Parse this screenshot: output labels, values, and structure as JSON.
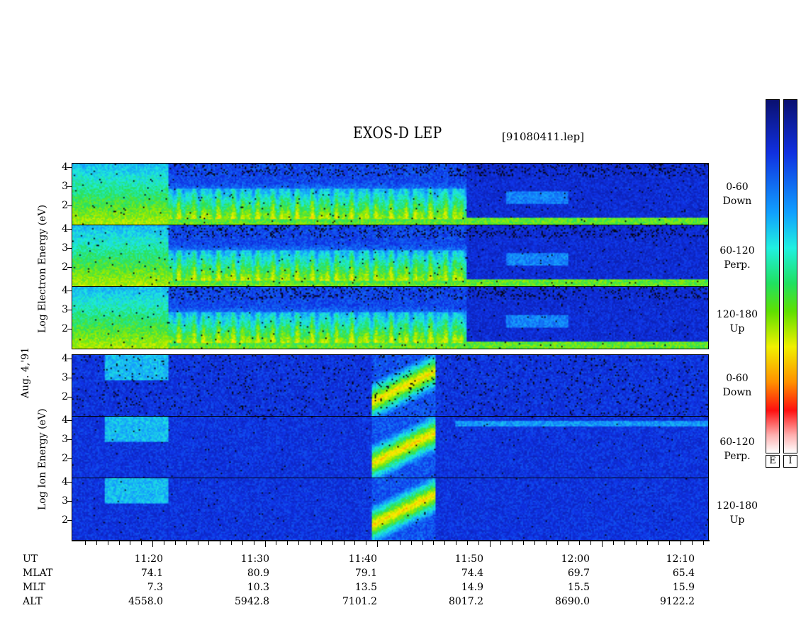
{
  "header": {
    "title": "EXOS-D LEP",
    "filename": "[91080411.lep]"
  },
  "left_labels": {
    "electron": "Log   Electron   Energy (eV)",
    "date": "Aug. 4,'91",
    "ion": "Log   Ion   Energy (eV)"
  },
  "panels": [
    {
      "id": "electron-0-60",
      "species": "electron",
      "pitch_line1": "0-60",
      "pitch_line2": "Down"
    },
    {
      "id": "electron-60-120",
      "species": "electron",
      "pitch_line1": "60-120",
      "pitch_line2": "Perp."
    },
    {
      "id": "electron-120-180",
      "species": "electron",
      "pitch_line1": "120-180",
      "pitch_line2": "Up"
    },
    {
      "id": "ion-0-60",
      "species": "ion",
      "pitch_line1": "0-60",
      "pitch_line2": "Down"
    },
    {
      "id": "ion-60-120",
      "species": "ion",
      "pitch_line1": "60-120",
      "pitch_line2": "Perp."
    },
    {
      "id": "ion-120-180",
      "species": "ion",
      "pitch_line1": "120-180",
      "pitch_line2": "Up"
    }
  ],
  "y_ticks": [
    "4",
    "3",
    "2"
  ],
  "x_rows": {
    "labels": [
      "UT",
      "MLAT",
      "MLT",
      "ALT"
    ],
    "ut": [
      "11:20",
      "11:30",
      "11:40",
      "11:50",
      "12:00",
      "12:10"
    ],
    "mlat": [
      "74.1",
      "80.9",
      "79.1",
      "74.4",
      "69.7",
      "65.4"
    ],
    "mlt": [
      "7.3",
      "10.3",
      "13.5",
      "14.9",
      "15.5",
      "15.9"
    ],
    "alt": [
      "4558.0",
      "5942.8",
      "7101.2",
      "8017.2",
      "8690.0",
      "9122.2"
    ]
  },
  "colorbar": {
    "labels": [
      "E",
      "I"
    ]
  },
  "chart_data": {
    "type": "heatmap",
    "title": "EXOS-D LEP",
    "ylabel": "Log Electron Energy (eV) / Log Ion Energy (eV)",
    "ylim": [
      1,
      4.2
    ],
    "x": [
      "11:20",
      "11:30",
      "11:40",
      "11:50",
      "12:00",
      "12:10"
    ]
  }
}
